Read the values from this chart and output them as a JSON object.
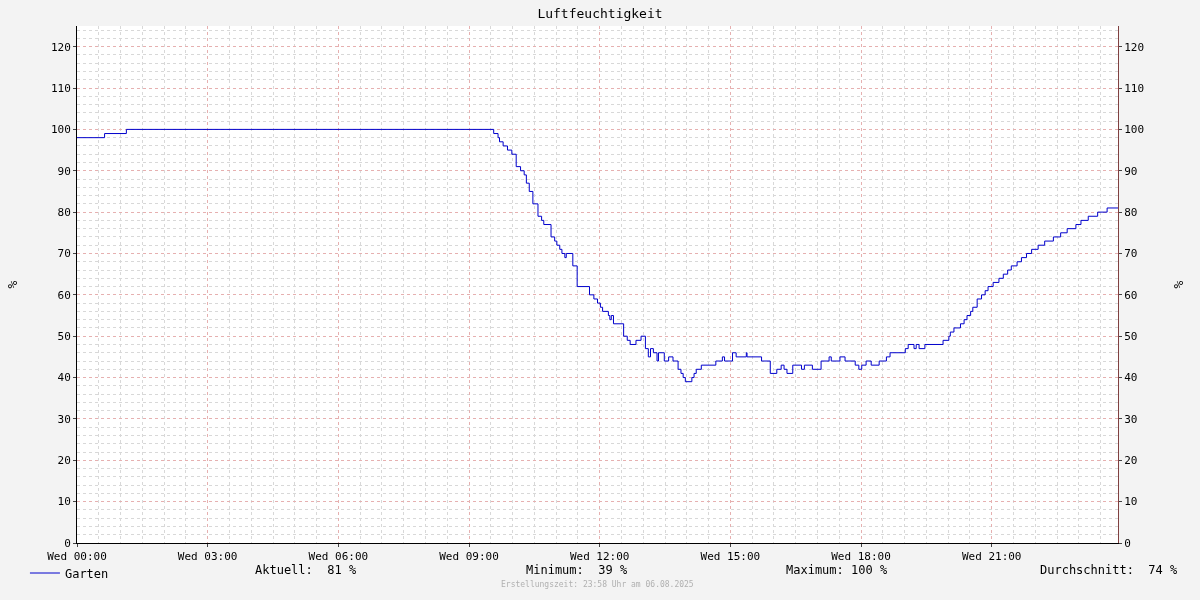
{
  "chart_data": {
    "type": "step",
    "title": "Luftfeuchtigkeit",
    "ylabel": "%",
    "y2label": "%",
    "xlim": [
      "2025-08-06T00:00",
      "2025-08-06T23:54"
    ],
    "xticks": [
      {
        "value": "2025-08-06T00:00",
        "label": "Wed 00:00"
      },
      {
        "value": "2025-08-06T03:00",
        "label": "Wed 03:00"
      },
      {
        "value": "2025-08-06T06:00",
        "label": "Wed 06:00"
      },
      {
        "value": "2025-08-06T09:00",
        "label": "Wed 09:00"
      },
      {
        "value": "2025-08-06T12:00",
        "label": "Wed 12:00"
      },
      {
        "value": "2025-08-06T15:00",
        "label": "Wed 15:00"
      },
      {
        "value": "2025-08-06T18:00",
        "label": "Wed 18:00"
      },
      {
        "value": "2025-08-06T21:00",
        "label": "Wed 21:00"
      }
    ],
    "ylim": [
      0,
      125
    ],
    "yticks": [
      0,
      10,
      20,
      30,
      40,
      50,
      60,
      70,
      80,
      90,
      100,
      110,
      120
    ],
    "y2lim": [
      0,
      125
    ],
    "y2ticks": [
      0,
      10,
      20,
      30,
      40,
      50,
      60,
      70,
      80,
      90,
      100,
      110,
      120
    ],
    "grid": true,
    "legend": "bottom left",
    "marker": "none",
    "line_style": "solid",
    "series": [
      {
        "name": "Garten",
        "color": "#0000cc",
        "x": [
          "2025-08-06T00:00",
          "2025-08-06T00:38",
          "2025-08-06T01:08",
          "2025-08-06T09:34",
          "2025-08-06T09:40",
          "2025-08-06T09:42",
          "2025-08-06T09:47",
          "2025-08-06T09:53",
          "2025-08-06T09:59",
          "2025-08-06T10:05",
          "2025-08-06T10:11",
          "2025-08-06T10:16",
          "2025-08-06T10:19",
          "2025-08-06T10:23",
          "2025-08-06T10:28",
          "2025-08-06T10:35",
          "2025-08-06T10:40",
          "2025-08-06T10:43",
          "2025-08-06T10:53",
          "2025-08-06T10:58",
          "2025-08-06T11:01",
          "2025-08-06T11:05",
          "2025-08-06T11:08",
          "2025-08-06T11:12",
          "2025-08-06T11:14",
          "2025-08-06T11:23",
          "2025-08-06T11:29",
          "2025-08-06T11:46",
          "2025-08-06T11:52",
          "2025-08-06T11:57",
          "2025-08-06T12:01",
          "2025-08-06T12:04",
          "2025-08-06T12:12",
          "2025-08-06T12:14",
          "2025-08-06T12:16",
          "2025-08-06T12:19",
          "2025-08-06T12:33",
          "2025-08-06T12:38",
          "2025-08-06T12:42",
          "2025-08-06T12:50",
          "2025-08-06T12:57",
          "2025-08-06T13:03",
          "2025-08-06T13:07",
          "2025-08-06T13:10",
          "2025-08-06T13:14",
          "2025-08-06T13:19",
          "2025-08-06T13:21",
          "2025-08-06T13:29",
          "2025-08-06T13:35",
          "2025-08-06T13:41",
          "2025-08-06T13:48",
          "2025-08-06T13:52",
          "2025-08-06T13:55",
          "2025-08-06T13:58",
          "2025-08-06T14:07",
          "2025-08-06T14:10",
          "2025-08-06T14:13",
          "2025-08-06T14:20",
          "2025-08-06T14:40",
          "2025-08-06T14:49",
          "2025-08-06T14:52",
          "2025-08-06T15:03",
          "2025-08-06T15:08",
          "2025-08-06T15:22",
          "2025-08-06T15:23",
          "2025-08-06T15:43",
          "2025-08-06T15:55",
          "2025-08-06T16:04",
          "2025-08-06T16:10",
          "2025-08-06T16:14",
          "2025-08-06T16:18",
          "2025-08-06T16:26",
          "2025-08-06T16:38",
          "2025-08-06T16:42",
          "2025-08-06T16:53",
          "2025-08-06T17:05",
          "2025-08-06T17:16",
          "2025-08-06T17:19",
          "2025-08-06T17:31",
          "2025-08-06T17:38",
          "2025-08-06T17:52",
          "2025-08-06T17:57",
          "2025-08-06T18:01",
          "2025-08-06T18:07",
          "2025-08-06T18:14",
          "2025-08-06T18:25",
          "2025-08-06T18:35",
          "2025-08-06T18:40",
          "2025-08-06T19:01",
          "2025-08-06T19:05",
          "2025-08-06T19:13",
          "2025-08-06T19:16",
          "2025-08-06T19:20",
          "2025-08-06T19:28",
          "2025-08-06T19:53",
          "2025-08-06T20:01",
          "2025-08-06T20:03",
          "2025-08-06T20:08",
          "2025-08-06T20:17",
          "2025-08-06T20:22",
          "2025-08-06T20:26",
          "2025-08-06T20:31",
          "2025-08-06T20:34",
          "2025-08-06T20:40",
          "2025-08-06T20:46",
          "2025-08-06T20:51",
          "2025-08-06T20:55",
          "2025-08-06T21:02",
          "2025-08-06T21:10",
          "2025-08-06T21:16",
          "2025-08-06T21:22",
          "2025-08-06T21:27",
          "2025-08-06T21:35",
          "2025-08-06T21:41",
          "2025-08-06T21:48",
          "2025-08-06T21:55",
          "2025-08-06T22:04",
          "2025-08-06T22:13",
          "2025-08-06T22:25",
          "2025-08-06T22:35",
          "2025-08-06T22:44",
          "2025-08-06T22:56",
          "2025-08-06T23:03",
          "2025-08-06T23:13",
          "2025-08-06T23:26",
          "2025-08-06T23:39",
          "2025-08-06T23:54"
        ],
        "values": [
          98,
          99,
          100,
          99,
          98,
          97,
          96,
          95,
          94,
          91,
          90,
          89,
          87,
          85,
          82,
          79,
          78,
          77,
          74,
          73,
          72,
          71,
          70,
          69,
          70,
          67,
          62,
          60,
          59,
          58,
          57,
          56,
          55,
          54,
          55,
          53,
          50,
          49,
          48,
          49,
          50,
          47,
          45,
          47,
          46,
          44,
          46,
          44,
          45,
          44,
          42,
          41,
          40,
          39,
          40,
          41,
          42,
          43,
          44,
          45,
          44,
          46,
          45,
          46,
          45,
          44,
          41,
          42,
          43,
          42,
          41,
          43,
          42,
          43,
          42,
          44,
          45,
          44,
          45,
          44,
          43,
          42,
          43,
          44,
          43,
          44,
          45,
          46,
          47,
          48,
          47,
          48,
          47,
          48,
          49,
          50,
          51,
          52,
          53,
          54,
          55,
          56,
          57,
          59,
          60,
          61,
          62,
          63,
          64,
          65,
          66,
          67,
          68,
          69,
          70,
          71,
          72,
          73,
          74,
          75,
          76,
          77,
          78,
          79,
          80,
          81,
          81
        ]
      }
    ],
    "annotations": [
      "Aktuell:  81 %",
      "Minimum:  39 %",
      "Maximum: 100 %",
      "Durchschnitt:  74 %",
      "Erstellungszeit: 23:58 Uhr am 06.08.2025"
    ]
  }
}
